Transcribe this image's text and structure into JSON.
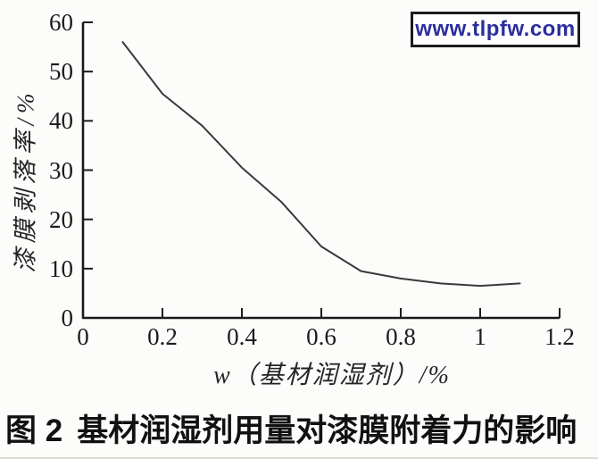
{
  "watermark": {
    "text": "www.tlpfw.com",
    "text_color": "#2b2e9c",
    "border_color": "#1c1c1c"
  },
  "chart_data": {
    "type": "line",
    "title": "",
    "xlabel": "w（基材润湿剂）/%",
    "ylabel": "漆膜剥落率/%",
    "xlim": [
      0,
      1.2
    ],
    "ylim": [
      0,
      60
    ],
    "x_ticks": [
      "0",
      "0.2",
      "0.4",
      "0.6",
      "0.8",
      "1",
      "1.2"
    ],
    "x_tick_values": [
      0,
      0.2,
      0.4,
      0.6,
      0.8,
      1,
      1.2
    ],
    "y_ticks": [
      "0",
      "10",
      "20",
      "30",
      "40",
      "50",
      "60"
    ],
    "y_tick_values": [
      0,
      10,
      20,
      30,
      40,
      50,
      60
    ],
    "grid": false,
    "legend_position": "none",
    "line_color": "#3a3a3a",
    "axis_color": "#1b1b1b",
    "x": [
      0.1,
      0.2,
      0.3,
      0.4,
      0.5,
      0.6,
      0.7,
      0.8,
      0.9,
      1.0,
      1.1
    ],
    "y": [
      56,
      45.5,
      39,
      30.5,
      23.5,
      14.5,
      9.5,
      8,
      7,
      6.5,
      7
    ]
  },
  "caption": {
    "figure_label": "图 2",
    "text": "基材润湿剂用量对漆膜附着力的影响"
  }
}
